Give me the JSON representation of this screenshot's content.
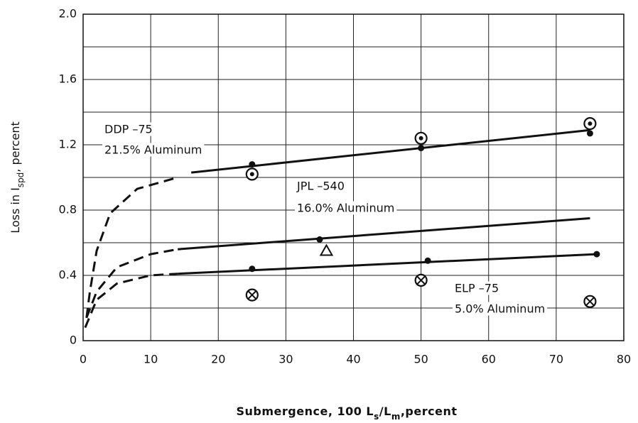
{
  "chart_data": {
    "type": "line",
    "xlabel": [
      {
        "text": "Submergence, 100  L"
      },
      {
        "text": "s",
        "sub": true
      },
      {
        "text": "/L"
      },
      {
        "text": "m",
        "sub": true
      },
      {
        "text": ",percent"
      }
    ],
    "ylabel": [
      {
        "text": "Loss in I"
      },
      {
        "text": "spd",
        "sub": true
      },
      {
        "text": ", percent"
      }
    ],
    "xlim": [
      0,
      80
    ],
    "xticks": [
      0,
      10,
      20,
      30,
      40,
      50,
      60,
      70,
      80
    ],
    "ylim": [
      0,
      2
    ],
    "yticks": [
      0,
      0.4,
      0.8,
      1.2,
      1.6,
      {
        "value": 2,
        "label": "2.0"
      }
    ],
    "y_minor_grid": [
      0.2,
      0.6,
      1.0,
      1.4,
      1.8
    ],
    "grid": true,
    "color": "#111",
    "series": [
      {
        "name": "DDP –75",
        "note": "21.5% Aluminum",
        "points": {
          "x": [
            25,
            50,
            75
          ],
          "y": [
            1.08,
            1.18,
            1.27
          ]
        },
        "open_points": {
          "marker": "circle-dot",
          "x": [
            25,
            50,
            75
          ],
          "y": [
            1.02,
            1.24,
            1.33
          ]
        },
        "fit": {
          "x": [
            16,
            75
          ],
          "y": [
            1.03,
            1.29
          ]
        },
        "dashed": {
          "x": [
            0.5,
            1,
            2,
            4,
            8,
            14
          ],
          "y": [
            0.14,
            0.3,
            0.55,
            0.78,
            0.93,
            1.0
          ]
        }
      },
      {
        "name": "JPL –540",
        "note": "16.0% Aluminum",
        "points": {
          "x": [
            35
          ],
          "y": [
            0.62
          ]
        },
        "open_points": {
          "marker": "triangle",
          "x": [
            36
          ],
          "y": [
            0.55
          ]
        },
        "fit": {
          "x": [
            14,
            75
          ],
          "y": [
            0.56,
            0.75
          ]
        },
        "dashed": {
          "x": [
            0.5,
            2,
            5,
            10,
            14
          ],
          "y": [
            0.14,
            0.3,
            0.45,
            0.53,
            0.56
          ]
        }
      },
      {
        "name": "ELP –75",
        "note": "5.0% Aluminum",
        "points": {
          "x": [
            25,
            51,
            76
          ],
          "y": [
            0.44,
            0.49,
            0.53
          ]
        },
        "open_points": {
          "marker": "circle-cross",
          "x": [
            25,
            50,
            75
          ],
          "y": [
            0.28,
            0.37,
            0.24
          ]
        },
        "fit": {
          "x": [
            14,
            76
          ],
          "y": [
            0.41,
            0.53
          ]
        },
        "dashed": {
          "x": [
            0.3,
            2,
            5,
            10,
            14
          ],
          "y": [
            0.08,
            0.25,
            0.35,
            0.4,
            0.41
          ]
        }
      }
    ]
  }
}
